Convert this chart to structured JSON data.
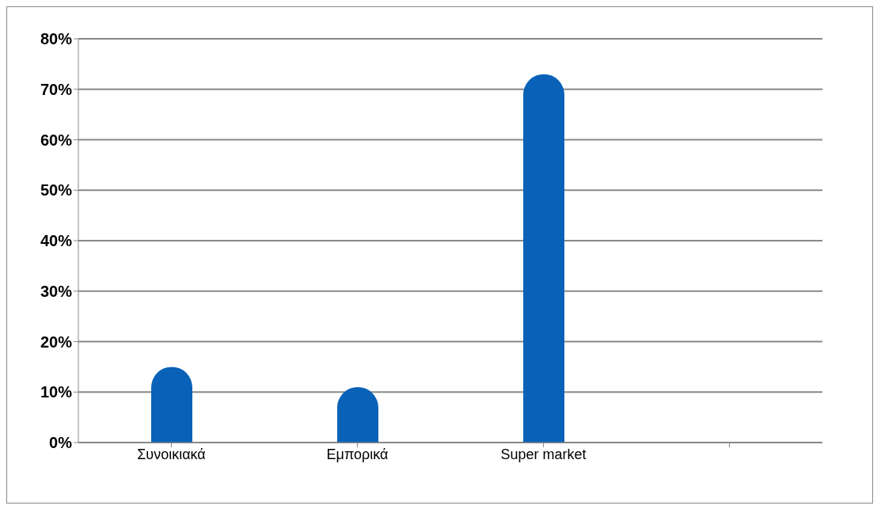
{
  "chart_data": {
    "type": "bar",
    "categories": [
      "Συνοικιακά",
      "Εμπορικά",
      "Super market",
      null
    ],
    "values": [
      15,
      11,
      73,
      null
    ],
    "color": "#0a62b8",
    "ylim": [
      0,
      80
    ],
    "yticks": [
      {
        "value": 0,
        "label": "0%"
      },
      {
        "value": 10,
        "label": "10%"
      },
      {
        "value": 20,
        "label": "20%"
      },
      {
        "value": 30,
        "label": "30%"
      },
      {
        "value": 40,
        "label": "40%"
      },
      {
        "value": 50,
        "label": "50%"
      },
      {
        "value": 60,
        "label": "60%"
      },
      {
        "value": 70,
        "label": "70%"
      },
      {
        "value": 80,
        "label": "80%"
      }
    ],
    "grid": "y",
    "legend": false
  }
}
